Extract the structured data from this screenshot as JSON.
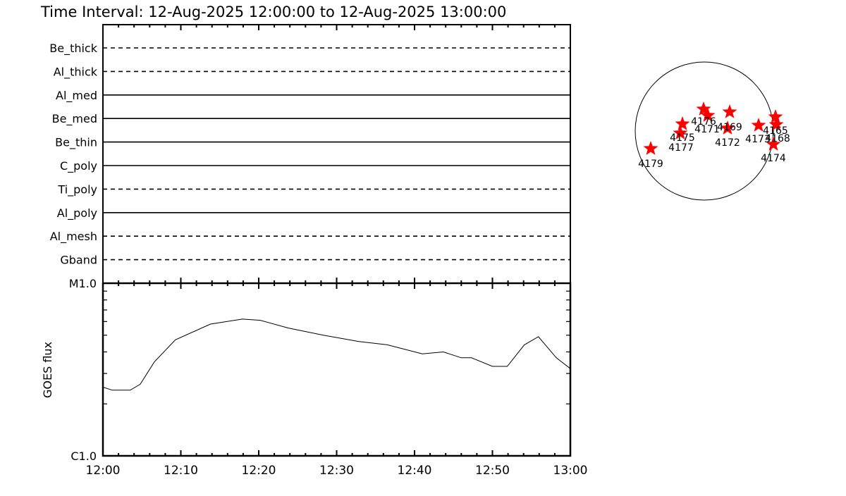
{
  "title": "Time Interval: 12-Aug-2025 12:00:00 to 12-Aug-2025 13:00:00",
  "chart_data": [
    {
      "type": "table",
      "description_of_rows": "filter timeline",
      "rows": [
        {
          "label": "Be_thick",
          "dashed": true
        },
        {
          "label": "Al_thick",
          "dashed": true
        },
        {
          "label": "Al_med",
          "dashed": false
        },
        {
          "label": "Be_med",
          "dashed": false
        },
        {
          "label": "Be_thin",
          "dashed": false
        },
        {
          "label": "C_poly",
          "dashed": false
        },
        {
          "label": "Ti_poly",
          "dashed": true
        },
        {
          "label": "Al_poly",
          "dashed": false
        },
        {
          "label": "Al_mesh",
          "dashed": true
        },
        {
          "label": "Gband",
          "dashed": true
        }
      ]
    },
    {
      "type": "line",
      "ylabel": "GOES flux",
      "yscale": "log",
      "ylim": [
        1e-06,
        1e-05
      ],
      "ytick_labels": [
        "C1.0",
        "M1.0"
      ],
      "xlim": [
        "12:00",
        "13:00"
      ],
      "xtick_labels": [
        "12:00",
        "12:10",
        "12:20",
        "12:30",
        "12:40",
        "12:50",
        "13:00"
      ],
      "x_minutes": [
        0,
        1.2,
        3.5,
        4.8,
        6.6,
        9.3,
        13.8,
        17.9,
        20.2,
        23.8,
        28.3,
        32.8,
        36.5,
        41,
        43.7,
        46,
        47.3,
        50,
        51.9,
        54.1,
        55.9,
        58.2,
        60
      ],
      "y_flux": [
        2.5e-06,
        2.4e-06,
        2.4e-06,
        2.6e-06,
        3.5e-06,
        4.7e-06,
        5.8e-06,
        6.2e-06,
        6.1e-06,
        5.5e-06,
        5e-06,
        4.6e-06,
        4.4e-06,
        3.9e-06,
        4e-06,
        3.7e-06,
        3.7e-06,
        3.3e-06,
        3.3e-06,
        4.4e-06,
        4.9e-06,
        3.7e-06,
        3.2e-06
      ]
    },
    {
      "type": "scatter",
      "description_of_points": "active regions on solar disk",
      "marker_color": "#ff0000",
      "labels": [
        "4179",
        "4175",
        "4177",
        "4176",
        "4171",
        "4169",
        "4172",
        "4173",
        "4165",
        "4168",
        "4174"
      ]
    }
  ]
}
